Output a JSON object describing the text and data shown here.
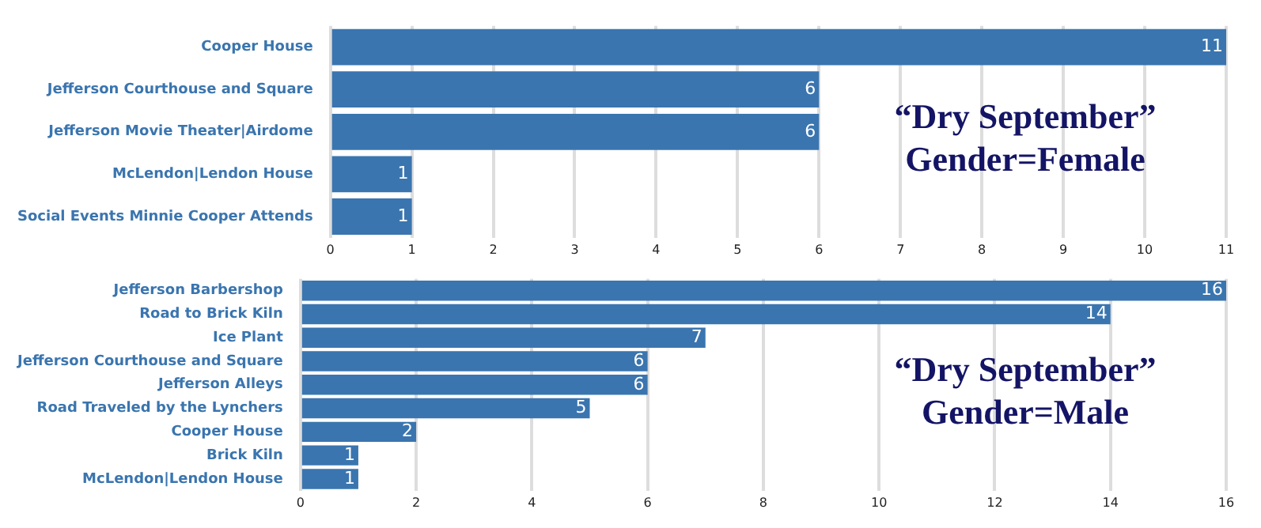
{
  "chart_data": [
    {
      "type": "bar",
      "orientation": "horizontal",
      "title": "“Dry September”",
      "subtitle": "Gender=Female",
      "categories": [
        "Cooper House",
        "Jefferson Courthouse and Square",
        "Jefferson Movie Theater|Airdome",
        "McLendon|Lendon House",
        "Social Events Minnie Cooper Attends"
      ],
      "values": [
        11,
        6,
        6,
        1,
        1
      ],
      "color": "#3a75af",
      "data_labels": true,
      "xlim": [
        0,
        11
      ],
      "xticks": [
        0,
        1,
        2,
        3,
        4,
        5,
        6,
        7,
        8,
        9,
        10,
        11
      ],
      "grid": "x",
      "legend": false
    },
    {
      "type": "bar",
      "orientation": "horizontal",
      "title": "“Dry September”",
      "subtitle": "Gender=Male",
      "categories": [
        "Jefferson Barbershop",
        "Road to Brick Kiln",
        "Ice Plant",
        "Jefferson Courthouse and Square",
        "Jefferson Alleys",
        "Road Traveled by the Lynchers",
        "Cooper House",
        "Brick Kiln",
        "McLendon|Lendon House"
      ],
      "values": [
        16,
        14,
        7,
        6,
        6,
        5,
        2,
        1,
        1
      ],
      "color": "#3a75af",
      "data_labels": true,
      "xlim": [
        0,
        16
      ],
      "xticks": [
        0,
        2,
        4,
        6,
        8,
        10,
        12,
        14,
        16
      ],
      "grid": "x",
      "legend": false
    }
  ]
}
